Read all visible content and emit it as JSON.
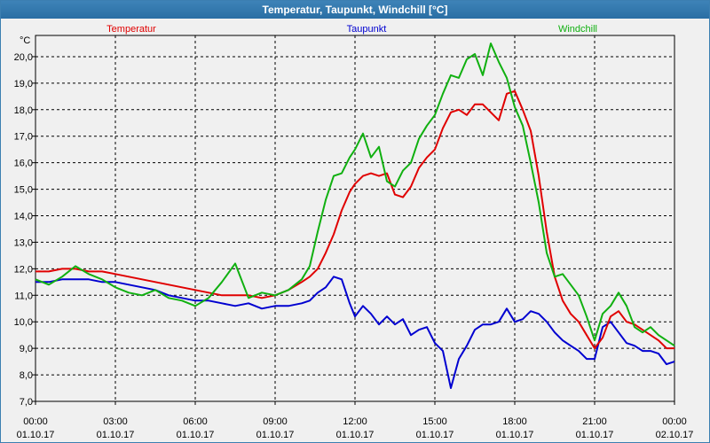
{
  "window": {
    "title": "Temperatur, Taupunkt, Windchill [°C]"
  },
  "colors": {
    "Temperatur": "#e00000",
    "Taupunkt": "#0000d0",
    "Windchill": "#10b010"
  },
  "chart_data": {
    "type": "line",
    "ylabel": "°C",
    "ylim": [
      7,
      21
    ],
    "xlim": [
      0,
      24
    ],
    "grid": true,
    "legend": "top",
    "yticks": [
      "7,0",
      "8,0",
      "9,0",
      "10,0",
      "11,0",
      "12,0",
      "13,0",
      "14,0",
      "15,0",
      "16,0",
      "17,0",
      "18,0",
      "19,0",
      "20,0"
    ],
    "xticks": [
      {
        "time": "00:00",
        "date": "01.10.17"
      },
      {
        "time": "03:00",
        "date": "01.10.17"
      },
      {
        "time": "06:00",
        "date": "01.10.17"
      },
      {
        "time": "09:00",
        "date": "01.10.17"
      },
      {
        "time": "12:00",
        "date": "01.10.17"
      },
      {
        "time": "15:00",
        "date": "01.10.17"
      },
      {
        "time": "18:00",
        "date": "01.10.17"
      },
      {
        "time": "21:00",
        "date": "01.10.17"
      },
      {
        "time": "00:00",
        "date": "02.10.17"
      }
    ],
    "series": [
      {
        "name": "Temperatur",
        "x": [
          0,
          0.5,
          1,
          1.5,
          2,
          2.5,
          3,
          3.5,
          4,
          4.5,
          5,
          5.5,
          6,
          6.5,
          7,
          7.5,
          8,
          8.5,
          9,
          9.5,
          10,
          10.3,
          10.6,
          10.9,
          11.2,
          11.5,
          11.8,
          12,
          12.3,
          12.6,
          12.9,
          13.2,
          13.5,
          13.8,
          14.1,
          14.4,
          14.7,
          15,
          15.3,
          15.6,
          15.9,
          16.2,
          16.5,
          16.8,
          17.1,
          17.4,
          17.7,
          18,
          18.3,
          18.6,
          18.9,
          19.2,
          19.5,
          19.8,
          20.1,
          20.4,
          20.7,
          21,
          21.3,
          21.6,
          21.9,
          22.2,
          22.5,
          22.8,
          23.1,
          23.4,
          23.7,
          24
        ],
        "values": [
          11.9,
          11.9,
          12.0,
          12.0,
          11.9,
          11.9,
          11.8,
          11.7,
          11.6,
          11.5,
          11.4,
          11.3,
          11.2,
          11.1,
          11.0,
          11.0,
          11.0,
          10.9,
          11.0,
          11.2,
          11.5,
          11.7,
          12.0,
          12.6,
          13.3,
          14.2,
          14.9,
          15.2,
          15.5,
          15.6,
          15.5,
          15.6,
          14.8,
          14.7,
          15.1,
          15.8,
          16.2,
          16.5,
          17.3,
          17.9,
          18.0,
          17.8,
          18.2,
          18.2,
          17.9,
          17.6,
          18.6,
          18.7,
          18.0,
          17.2,
          15.5,
          13.4,
          11.7,
          10.8,
          10.3,
          10.0,
          9.5,
          9.0,
          9.4,
          10.2,
          10.4,
          10.0,
          9.9,
          9.7,
          9.5,
          9.3,
          9.0,
          9.0
        ]
      },
      {
        "name": "Taupunkt",
        "x": [
          0,
          0.5,
          1,
          1.5,
          2,
          2.5,
          3,
          3.5,
          4,
          4.5,
          5,
          5.5,
          6,
          6.5,
          7,
          7.5,
          8,
          8.5,
          9,
          9.5,
          10,
          10.3,
          10.6,
          10.9,
          11.2,
          11.5,
          11.8,
          12,
          12.3,
          12.6,
          12.9,
          13.2,
          13.5,
          13.8,
          14.1,
          14.4,
          14.7,
          15,
          15.3,
          15.6,
          15.9,
          16.2,
          16.5,
          16.8,
          17.1,
          17.4,
          17.7,
          18,
          18.3,
          18.6,
          18.9,
          19.2,
          19.5,
          19.8,
          20.1,
          20.4,
          20.7,
          21,
          21.3,
          21.6,
          21.9,
          22.2,
          22.5,
          22.8,
          23.1,
          23.4,
          23.7,
          24
        ],
        "values": [
          11.5,
          11.5,
          11.6,
          11.6,
          11.6,
          11.5,
          11.5,
          11.4,
          11.3,
          11.2,
          11.0,
          10.9,
          10.8,
          10.8,
          10.7,
          10.6,
          10.7,
          10.5,
          10.6,
          10.6,
          10.7,
          10.8,
          11.1,
          11.3,
          11.7,
          11.6,
          10.7,
          10.2,
          10.6,
          10.3,
          9.9,
          10.2,
          9.9,
          10.1,
          9.5,
          9.7,
          9.8,
          9.2,
          8.9,
          7.5,
          8.6,
          9.1,
          9.7,
          9.9,
          9.9,
          10.0,
          10.5,
          10.0,
          10.1,
          10.4,
          10.3,
          10.0,
          9.6,
          9.3,
          9.1,
          8.9,
          8.6,
          8.6,
          9.8,
          10.0,
          9.6,
          9.2,
          9.1,
          8.9,
          8.9,
          8.8,
          8.4,
          8.5
        ]
      },
      {
        "name": "Windchill",
        "x": [
          0,
          0.5,
          1,
          1.5,
          2,
          2.5,
          3,
          3.5,
          4,
          4.5,
          5,
          5.5,
          6,
          6.5,
          7,
          7.5,
          8,
          8.5,
          9,
          9.5,
          10,
          10.3,
          10.6,
          10.9,
          11.2,
          11.5,
          11.8,
          12,
          12.3,
          12.6,
          12.9,
          13.2,
          13.5,
          13.8,
          14.1,
          14.4,
          14.7,
          15,
          15.3,
          15.6,
          15.9,
          16.2,
          16.5,
          16.8,
          17.1,
          17.4,
          17.7,
          18,
          18.3,
          18.6,
          18.9,
          19.2,
          19.5,
          19.8,
          20.1,
          20.4,
          20.7,
          21,
          21.3,
          21.6,
          21.9,
          22.2,
          22.5,
          22.8,
          23.1,
          23.4,
          23.7,
          24
        ],
        "values": [
          11.6,
          11.4,
          11.7,
          12.1,
          11.8,
          11.6,
          11.3,
          11.1,
          11.0,
          11.2,
          10.9,
          10.8,
          10.6,
          10.9,
          11.5,
          12.2,
          10.9,
          11.1,
          11.0,
          11.2,
          11.6,
          12.1,
          13.4,
          14.6,
          15.5,
          15.6,
          16.2,
          16.5,
          17.1,
          16.2,
          16.6,
          15.3,
          15.1,
          15.7,
          16.0,
          16.9,
          17.4,
          17.8,
          18.6,
          19.3,
          19.2,
          19.9,
          20.1,
          19.3,
          20.5,
          19.8,
          19.2,
          18.1,
          17.4,
          16.0,
          14.5,
          12.6,
          11.7,
          11.8,
          11.4,
          11.0,
          10.2,
          9.3,
          10.3,
          10.6,
          11.1,
          10.6,
          9.8,
          9.6,
          9.8,
          9.5,
          9.3,
          9.1
        ]
      }
    ]
  }
}
